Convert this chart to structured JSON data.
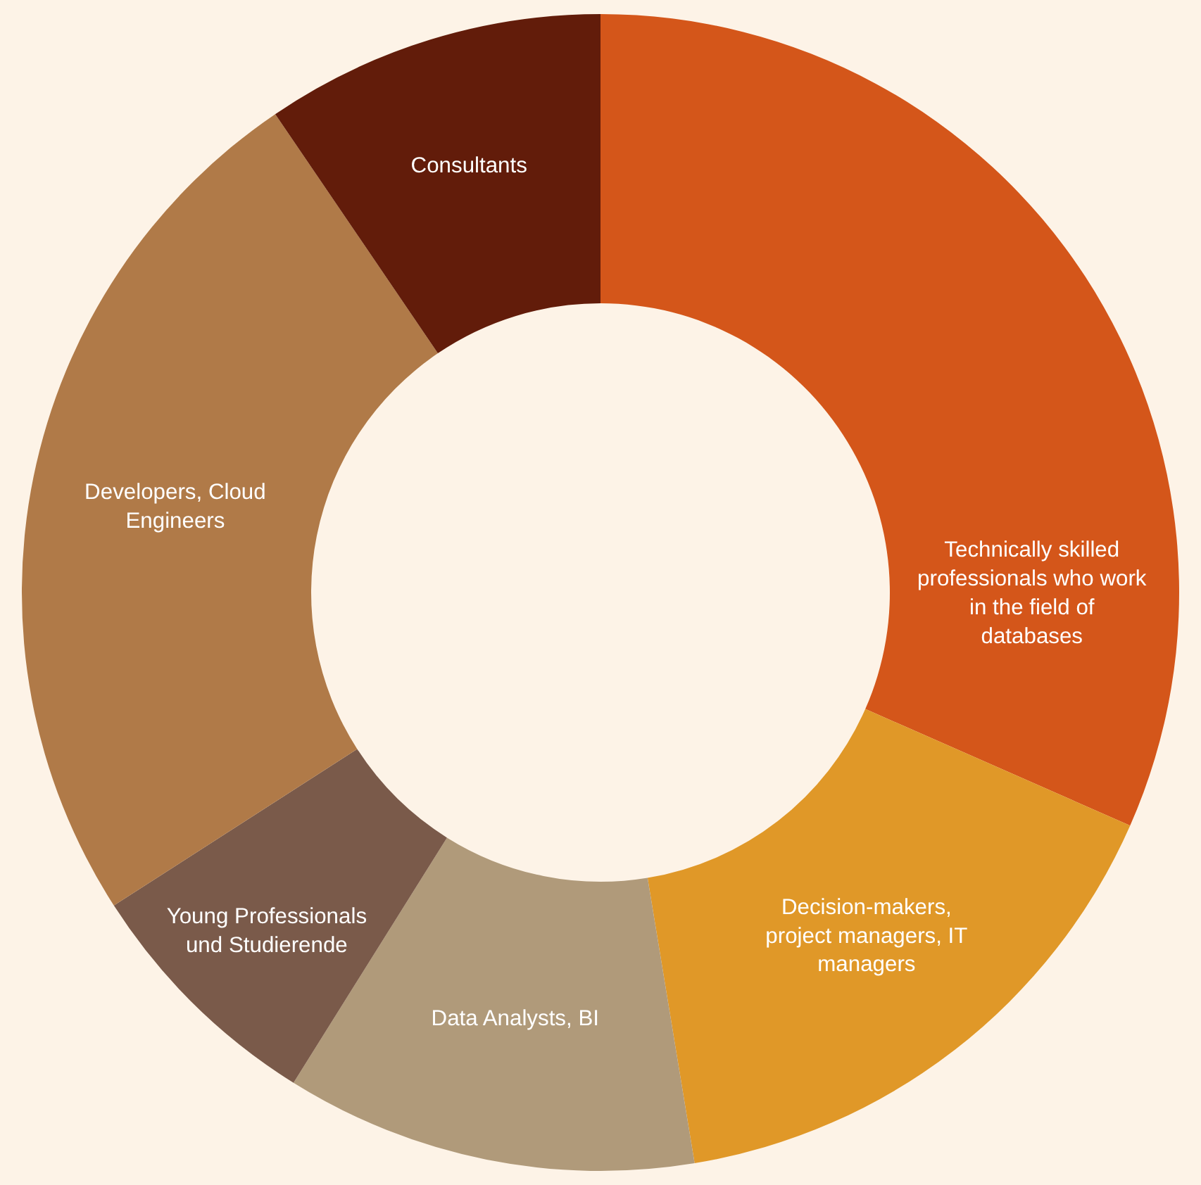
{
  "chart_data": {
    "type": "donut",
    "categories": [
      "Technically skilled professionals who work in the field of databases",
      "Decision-makers, project managers, IT managers",
      "Data Analysts, BI",
      "Young Professionals und Studierende",
      "Developers, Cloud Engineers",
      "Consultants"
    ],
    "values": [
      31.6,
      15.8,
      11.5,
      7.0,
      24.6,
      9.5
    ],
    "colors": [
      "#d4561a",
      "#e09828",
      "#b09a7a",
      "#7a5a4a",
      "#b07a48",
      "#621c0a"
    ],
    "legend": false
  }
}
